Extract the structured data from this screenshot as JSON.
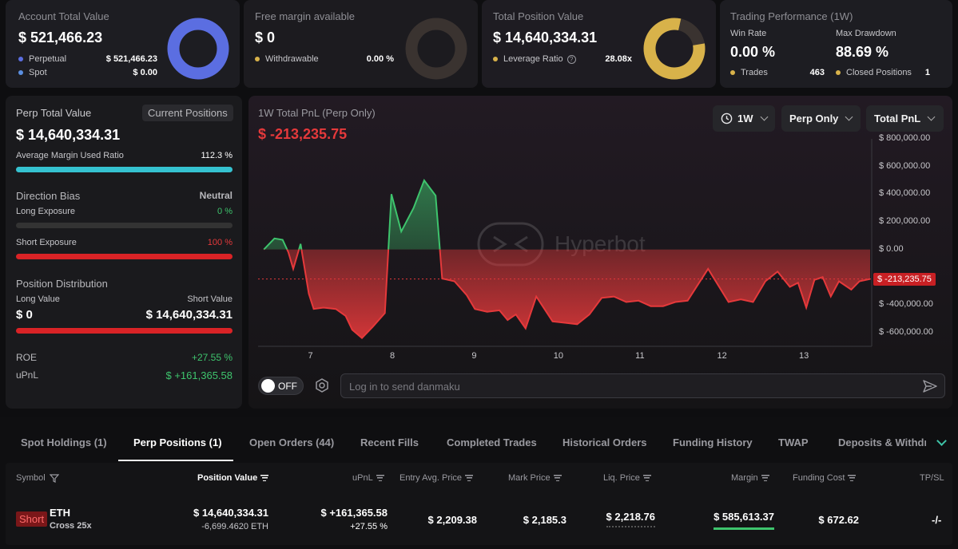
{
  "summary": {
    "account": {
      "title": "Account Total Value",
      "value": "$ 521,466.23",
      "items": [
        {
          "label": "Perpetual",
          "value": "$ 521,466.23",
          "color": "#5b6ee1"
        },
        {
          "label": "Spot",
          "value": "$ 0.00",
          "color": "#5b8fe1"
        }
      ],
      "donut_color": "#5b6ee1"
    },
    "margin": {
      "title": "Free margin available",
      "value": "$ 0",
      "withdraw_label": "Withdrawable",
      "withdraw_value": "0.00 %",
      "donut_color": "#3a3330"
    },
    "position": {
      "title": "Total Position Value",
      "value": "$ 14,640,334.31",
      "leverage_label": "Leverage Ratio",
      "leverage_value": "28.08x",
      "donut_color": "#d8b24a"
    },
    "performance": {
      "title": "Trading Performance (1W)",
      "win_rate_label": "Win Rate",
      "win_rate_value": "0.00 %",
      "drawdown_label": "Max Drawdown",
      "drawdown_value": "88.69 %",
      "trades_label": "Trades",
      "trades_value": "463",
      "closed_label": "Closed Positions",
      "closed_value": "1"
    }
  },
  "perp_panel": {
    "title": "Perp Total Value",
    "button": "Current Positions",
    "value": "$ 14,640,334.31",
    "margin_ratio_label": "Average Margin Used Ratio",
    "margin_ratio_value": "112.3 %",
    "margin_ratio_fraction": 1.0,
    "bias_label": "Direction Bias",
    "bias_value": "Neutral",
    "long_exposure_label": "Long Exposure",
    "long_exposure_value": "0 %",
    "short_exposure_label": "Short Exposure",
    "short_exposure_value": "100 %",
    "distribution_label": "Position Distribution",
    "long_value_label": "Long Value",
    "short_value_label": "Short Value",
    "long_value": "$ 0",
    "short_value": "$ 14,640,334.31",
    "roe_label": "ROE",
    "roe_value": "+27.55 %",
    "upnl_label": "uPnL",
    "upnl_value": "$ +161,365.58"
  },
  "chart_header": {
    "title": "1W Total PnL (Perp Only)",
    "value": "$ -213,235.75",
    "period": "1W",
    "scope": "Perp Only",
    "metric": "Total PnL",
    "watermark": "Hyperbot",
    "current_label": "$ -213,235.75"
  },
  "chart_data": {
    "type": "area",
    "ylim": [
      -700000,
      800000
    ],
    "yticks": [
      {
        "label": "$ 800,000.00",
        "v": 800000
      },
      {
        "label": "$ 600,000.00",
        "v": 600000
      },
      {
        "label": "$ 400,000.00",
        "v": 400000
      },
      {
        "label": "$ 200,000.00",
        "v": 200000
      },
      {
        "label": "$ 0.00",
        "v": 0
      },
      {
        "label": "$ -400,000.00",
        "v": -400000
      },
      {
        "label": "$ -600,000.00",
        "v": -600000
      }
    ],
    "xticks": [
      {
        "label": "7",
        "x": 7
      },
      {
        "label": "8",
        "x": 8
      },
      {
        "label": "9",
        "x": 9
      },
      {
        "label": "10",
        "x": 10
      },
      {
        "label": "11",
        "x": 11
      },
      {
        "label": "12",
        "x": 12
      },
      {
        "label": "13",
        "x": 13
      }
    ],
    "xlim": [
      6.35,
      13.85
    ],
    "current_value": -213235.75,
    "series": [
      {
        "values": [
          [
            6.42,
            0
          ],
          [
            6.55,
            80000
          ],
          [
            6.65,
            70000
          ],
          [
            6.72,
            -20000
          ],
          [
            6.78,
            -140000
          ],
          [
            6.87,
            40000
          ],
          [
            6.97,
            -320000
          ],
          [
            7.03,
            -430000
          ],
          [
            7.15,
            -420000
          ],
          [
            7.3,
            -430000
          ],
          [
            7.42,
            -480000
          ],
          [
            7.5,
            -580000
          ],
          [
            7.62,
            -640000
          ],
          [
            7.75,
            -560000
          ],
          [
            7.9,
            -460000
          ],
          [
            7.98,
            400000
          ],
          [
            8.1,
            130000
          ],
          [
            8.25,
            300000
          ],
          [
            8.38,
            500000
          ],
          [
            8.52,
            390000
          ],
          [
            8.6,
            -210000
          ],
          [
            8.75,
            -230000
          ],
          [
            8.9,
            -330000
          ],
          [
            9.0,
            -430000
          ],
          [
            9.15,
            -450000
          ],
          [
            9.3,
            -440000
          ],
          [
            9.4,
            -510000
          ],
          [
            9.5,
            -470000
          ],
          [
            9.62,
            -570000
          ],
          [
            9.75,
            -340000
          ],
          [
            9.95,
            -520000
          ],
          [
            10.1,
            -530000
          ],
          [
            10.25,
            -540000
          ],
          [
            10.4,
            -470000
          ],
          [
            10.55,
            -350000
          ],
          [
            10.7,
            -340000
          ],
          [
            10.85,
            -380000
          ],
          [
            11.0,
            -370000
          ],
          [
            11.15,
            -410000
          ],
          [
            11.3,
            -410000
          ],
          [
            11.45,
            -380000
          ],
          [
            11.6,
            -370000
          ],
          [
            11.85,
            -140000
          ],
          [
            12.1,
            -380000
          ],
          [
            12.25,
            -360000
          ],
          [
            12.4,
            -380000
          ],
          [
            12.55,
            -230000
          ],
          [
            12.7,
            -160000
          ],
          [
            12.85,
            -270000
          ],
          [
            12.95,
            -240000
          ],
          [
            13.05,
            -420000
          ],
          [
            13.15,
            -220000
          ],
          [
            13.25,
            -200000
          ],
          [
            13.35,
            -340000
          ],
          [
            13.45,
            -230000
          ],
          [
            13.6,
            -290000
          ],
          [
            13.7,
            -230000
          ],
          [
            13.83,
            -213235.75
          ]
        ]
      }
    ]
  },
  "danmaku": {
    "toggle_label": "OFF",
    "placeholder": "Log in to send danmaku"
  },
  "tabs": [
    "Spot Holdings (1)",
    "Perp Positions (1)",
    "Open Orders (44)",
    "Recent Fills",
    "Completed Trades",
    "Historical Orders",
    "Funding History",
    "TWAP",
    "Deposits & Withdra"
  ],
  "active_tab": 1,
  "table": {
    "headers": [
      "Symbol",
      "Position Value",
      "uPnL",
      "Entry Avg. Price",
      "Mark Price",
      "Liq. Price",
      "Margin",
      "Funding Cost",
      "TP/SL"
    ],
    "row": {
      "side": "Short",
      "symbol": "ETH",
      "mode": "Cross 25x",
      "position_value": "$ 14,640,334.31",
      "position_size": "-6,699.4620 ETH",
      "upnl": "$ +161,365.58",
      "upnl_pct": "+27.55 %",
      "entry_price": "$ 2,209.38",
      "mark_price": "$ 2,185.3",
      "liq_price": "$ 2,218.76",
      "margin": "$ 585,613.37",
      "funding_cost": "$ 672.62",
      "tpsl": "-/-"
    }
  },
  "colors": {
    "positive": "#3ec46d",
    "negative": "#e5393b",
    "accent_cyan": "#35c2d0",
    "gold": "#d8b24a"
  }
}
